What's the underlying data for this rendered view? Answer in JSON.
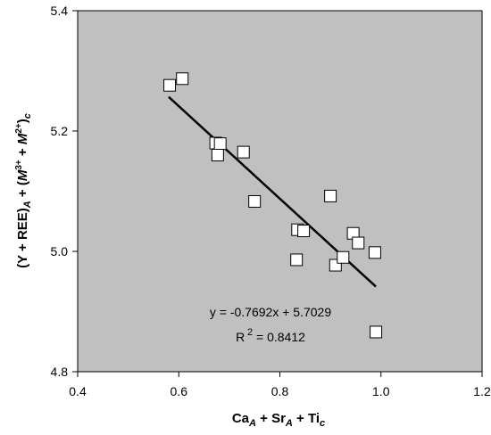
{
  "chart_data": {
    "type": "scatter",
    "title": "",
    "xlabel": "Ca_A + Sr_A + Ti_c",
    "ylabel": "(Y + REE)_A + (M3+ + M2+)_c",
    "xlim": [
      0.4,
      1.2
    ],
    "ylim": [
      4.8,
      5.4
    ],
    "xticks": [
      "0.4",
      "0.6",
      "0.8",
      "1.0",
      "1.2"
    ],
    "yticks": [
      "4.8",
      "5.0",
      "5.2",
      "5.4"
    ],
    "grid": false,
    "legend": "none",
    "background_color": "#c0c0c0",
    "marker": "open-square",
    "series": [
      {
        "points": [
          [
            0.582,
            5.276
          ],
          [
            0.607,
            5.287
          ],
          [
            0.673,
            5.18
          ],
          [
            0.682,
            5.179
          ],
          [
            0.677,
            5.16
          ],
          [
            0.728,
            5.165
          ],
          [
            0.75,
            5.083
          ],
          [
            0.835,
            5.036
          ],
          [
            0.847,
            5.034
          ],
          [
            0.833,
            4.986
          ],
          [
            0.9,
            5.092
          ],
          [
            0.945,
            5.03
          ],
          [
            0.955,
            5.014
          ],
          [
            0.91,
            4.977
          ],
          [
            0.925,
            4.99
          ],
          [
            0.988,
            4.998
          ],
          [
            0.99,
            4.866
          ]
        ]
      }
    ],
    "trendline": {
      "slope": -0.7692,
      "intercept": 5.7029,
      "x_range": [
        0.58,
        0.99
      ]
    },
    "annotations": [
      "y = -0.7692x + 5.7029",
      "R² = 0.8412"
    ]
  }
}
